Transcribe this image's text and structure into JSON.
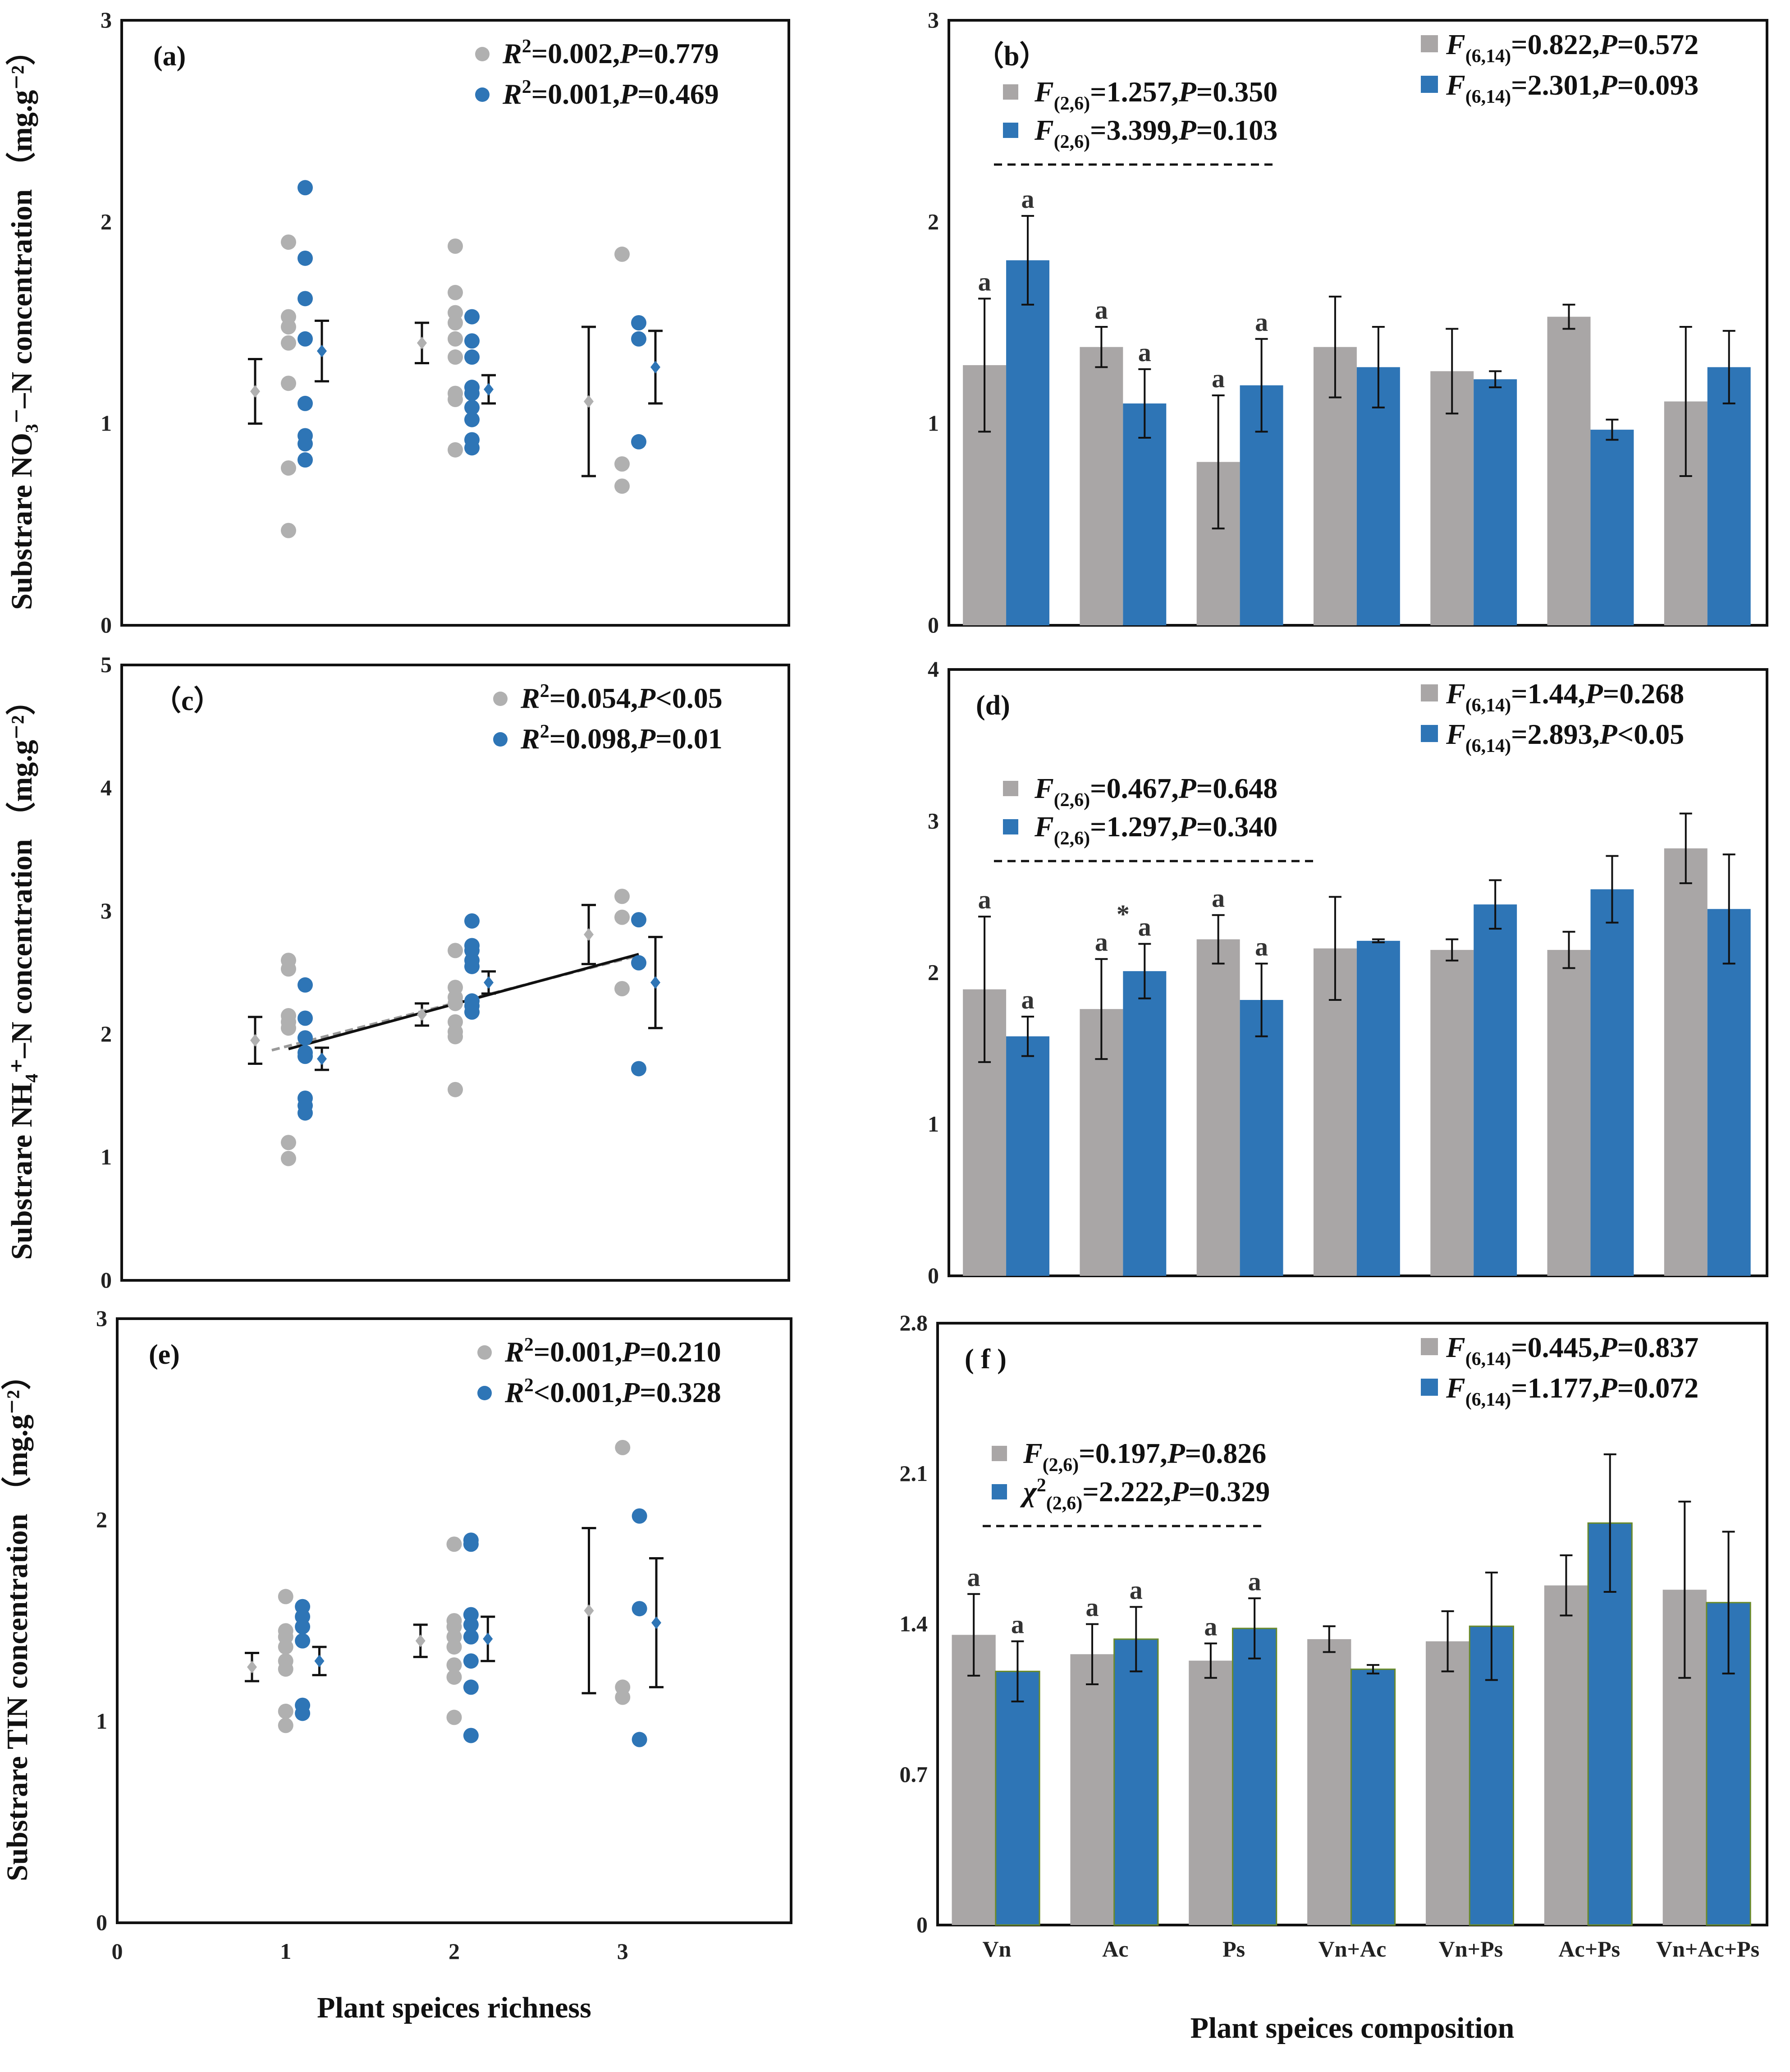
{
  "chart_data": [
    {
      "type": "scatter",
      "panel_label": "(a)",
      "ylabel": "Substrare NO₃⁻–N concentration （mg.g⁻²）",
      "ylim": [
        0,
        3
      ],
      "yticks": [
        "0",
        "1",
        "2",
        "3"
      ],
      "legend": [
        {
          "label": "R²=0.002,P=0.779",
          "color": "#b0b0b0"
        },
        {
          "label": "R²=0.001,P=0.469",
          "color": "#2e75b6"
        }
      ],
      "series": [
        {
          "name": "gray",
          "color": "#b0b0b0",
          "points": [
            [
              1,
              1.9
            ],
            [
              1,
              1.53
            ],
            [
              1,
              1.48
            ],
            [
              1,
              1.4
            ],
            [
              1,
              1.2
            ],
            [
              1,
              0.78
            ],
            [
              1,
              0.47
            ],
            [
              2,
              1.88
            ],
            [
              2,
              1.65
            ],
            [
              2,
              1.55
            ],
            [
              2,
              1.5
            ],
            [
              2,
              1.42
            ],
            [
              2,
              1.33
            ],
            [
              2,
              1.15
            ],
            [
              2,
              1.12
            ],
            [
              2,
              0.87
            ],
            [
              3,
              1.84
            ],
            [
              3,
              0.8
            ],
            [
              3,
              0.69
            ]
          ],
          "mean": [
            [
              0.8,
              1.16,
              0.16
            ],
            [
              1.8,
              1.4,
              0.1
            ],
            [
              2.8,
              1.11,
              0.37
            ]
          ]
        },
        {
          "name": "blue",
          "color": "#2e75b6",
          "points": [
            [
              1.1,
              2.17
            ],
            [
              1.1,
              1.82
            ],
            [
              1.1,
              1.62
            ],
            [
              1.1,
              1.42
            ],
            [
              1.1,
              1.1
            ],
            [
              1.1,
              0.94
            ],
            [
              1.1,
              0.9
            ],
            [
              1.1,
              0.82
            ],
            [
              2.1,
              1.53
            ],
            [
              2.1,
              1.41
            ],
            [
              2.1,
              1.33
            ],
            [
              2.1,
              1.18
            ],
            [
              2.1,
              1.15
            ],
            [
              2.1,
              1.08
            ],
            [
              2.1,
              1.02
            ],
            [
              2.1,
              0.92
            ],
            [
              2.1,
              0.88
            ],
            [
              3.1,
              1.5
            ],
            [
              3.1,
              1.42
            ],
            [
              3.1,
              0.91
            ]
          ],
          "mean": [
            [
              1.2,
              1.36,
              0.15
            ],
            [
              2.2,
              1.17,
              0.07
            ],
            [
              3.2,
              1.28,
              0.18
            ]
          ]
        }
      ]
    },
    {
      "type": "bar",
      "panel_label": "（b）",
      "ylim": [
        0,
        3
      ],
      "yticks": [
        "0",
        "1",
        "2",
        "3"
      ],
      "categories": [
        "Vn",
        "Ac",
        "Ps",
        "Vn+Ac",
        "Vn+Ps",
        "Ac+Ps",
        "Vn+Ac+Ps"
      ],
      "series": [
        {
          "name": "gray",
          "color": "#a9a6a6",
          "values": [
            1.29,
            1.38,
            0.81,
            1.38,
            1.26,
            1.53,
            1.11
          ],
          "errors": [
            0.33,
            0.1,
            0.33,
            0.25,
            0.21,
            0.06,
            0.37
          ]
        },
        {
          "name": "blue",
          "color": "#2e75b6",
          "values": [
            1.81,
            1.1,
            1.19,
            1.28,
            1.22,
            0.97,
            1.28
          ],
          "errors": [
            0.22,
            0.17,
            0.23,
            0.2,
            0.04,
            0.05,
            0.18
          ]
        }
      ],
      "significance": [
        [
          "a",
          "a"
        ],
        [
          "a",
          "a"
        ],
        [
          "a",
          "a"
        ]
      ],
      "star": "",
      "legend_top": [
        {
          "label": "F(6,14)=0.822,P=0.572",
          "color": "#a9a6a6"
        },
        {
          "label": "F(6,14)=2.301,P=0.093",
          "color": "#2e75b6"
        }
      ],
      "legend_inner": [
        {
          "label": "F(2,6)=1.257,P=0.350",
          "color": "#a9a6a6"
        },
        {
          "label": "F(2,6)=3.399,P=0.103",
          "color": "#2e75b6"
        }
      ]
    },
    {
      "type": "scatter",
      "panel_label": "（c）",
      "ylabel": "Substrare NH₄⁺–N concentration （mg.g⁻²）",
      "ylim": [
        0,
        5
      ],
      "yticks": [
        "0",
        "1",
        "2",
        "3",
        "4",
        "5"
      ],
      "legend": [
        {
          "label": "R²=0.054,P<0.05",
          "color": "#b0b0b0"
        },
        {
          "label": "R²=0.098,P=0.01",
          "color": "#2e75b6"
        }
      ],
      "series": [
        {
          "name": "gray",
          "color": "#b0b0b0",
          "points": [
            [
              1,
              2.6
            ],
            [
              1,
              2.53
            ],
            [
              1,
              2.15
            ],
            [
              1,
              2.1
            ],
            [
              1,
              2.05
            ],
            [
              1,
              1.12
            ],
            [
              1,
              0.99
            ],
            [
              2,
              2.68
            ],
            [
              2,
              2.38
            ],
            [
              2,
              2.3
            ],
            [
              2,
              2.25
            ],
            [
              2,
              2.1
            ],
            [
              2,
              2.02
            ],
            [
              2,
              1.98
            ],
            [
              2,
              1.55
            ],
            [
              3,
              3.12
            ],
            [
              3,
              2.95
            ],
            [
              3,
              2.37
            ]
          ],
          "mean": [
            [
              0.8,
              1.95,
              0.19
            ],
            [
              1.8,
              2.16,
              0.09
            ],
            [
              2.8,
              2.81,
              0.24
            ]
          ],
          "trend": [
            [
              0.9,
              1.87
            ],
            [
              3.1,
              2.64
            ]
          ]
        },
        {
          "name": "blue",
          "color": "#2e75b6",
          "points": [
            [
              1.1,
              2.4
            ],
            [
              1.1,
              2.13
            ],
            [
              1.1,
              1.97
            ],
            [
              1.1,
              1.85
            ],
            [
              1.1,
              1.82
            ],
            [
              1.1,
              1.48
            ],
            [
              1.1,
              1.42
            ],
            [
              1.1,
              1.36
            ],
            [
              2.1,
              2.92
            ],
            [
              2.1,
              2.72
            ],
            [
              2.1,
              2.68
            ],
            [
              2.1,
              2.6
            ],
            [
              2.1,
              2.55
            ],
            [
              2.1,
              2.27
            ],
            [
              2.1,
              2.23
            ],
            [
              2.1,
              2.18
            ],
            [
              3.1,
              2.93
            ],
            [
              3.1,
              2.58
            ],
            [
              3.1,
              1.72
            ]
          ],
          "mean": [
            [
              1.2,
              1.8,
              0.09
            ],
            [
              2.2,
              2.42,
              0.09
            ],
            [
              3.2,
              2.42,
              0.37
            ]
          ],
          "trend": [
            [
              1.0,
              1.88
            ],
            [
              3.1,
              2.65
            ]
          ]
        }
      ]
    },
    {
      "type": "bar",
      "panel_label": "(d)",
      "ylim": [
        0,
        4
      ],
      "yticks": [
        "0",
        "1",
        "2",
        "3",
        "4"
      ],
      "categories": [
        "Vn",
        "Ac",
        "Ps",
        "Vn+Ac",
        "Vn+Ps",
        "Ac+Ps",
        "Vn+Ac+Ps"
      ],
      "series": [
        {
          "name": "gray",
          "color": "#a9a6a6",
          "values": [
            1.89,
            1.76,
            2.22,
            2.16,
            2.15,
            2.15,
            2.82
          ],
          "errors": [
            0.48,
            0.33,
            0.16,
            0.34,
            0.07,
            0.12,
            0.23
          ]
        },
        {
          "name": "blue",
          "color": "#2e75b6",
          "values": [
            1.58,
            2.01,
            1.82,
            2.21,
            2.45,
            2.55,
            2.42
          ],
          "errors": [
            0.13,
            0.18,
            0.24,
            0.01,
            0.16,
            0.22,
            0.36
          ]
        }
      ],
      "significance": [
        [
          "a",
          "a"
        ],
        [
          "a",
          "a"
        ],
        [
          "a",
          "a"
        ]
      ],
      "star": "*",
      "legend_top": [
        {
          "label": "F(6,14)=1.44,P=0.268",
          "color": "#a9a6a6"
        },
        {
          "label": "F(6,14)=2.893,P<0.05",
          "color": "#2e75b6"
        }
      ],
      "legend_inner": [
        {
          "label": "F(2,6)=0.467,P=0.648",
          "color": "#a9a6a6"
        },
        {
          "label": "F(2,6)=1.297,P=0.340",
          "color": "#2e75b6"
        }
      ]
    },
    {
      "type": "scatter",
      "panel_label": "(e)",
      "ylabel": "Substrare TIN concentration （mg.g⁻²）",
      "xlabel": "Plant speices richness",
      "ylim": [
        0,
        3
      ],
      "yticks": [
        "0",
        "1",
        "2",
        "3"
      ],
      "xlim": [
        0,
        4
      ],
      "xticks": [
        "0",
        "1",
        "2",
        "3"
      ],
      "legend": [
        {
          "label": "R²=0.001,P=0.210",
          "color": "#b0b0b0"
        },
        {
          "label": "R²<0.001,P=0.328",
          "color": "#2e75b6"
        }
      ],
      "series": [
        {
          "name": "gray",
          "color": "#b0b0b0",
          "points": [
            [
              1,
              1.62
            ],
            [
              1,
              1.45
            ],
            [
              1,
              1.42
            ],
            [
              1,
              1.37
            ],
            [
              1,
              1.3
            ],
            [
              1,
              1.26
            ],
            [
              1,
              1.05
            ],
            [
              1,
              0.98
            ],
            [
              2,
              1.88
            ],
            [
              2,
              1.5
            ],
            [
              2,
              1.47
            ],
            [
              2,
              1.42
            ],
            [
              2,
              1.37
            ],
            [
              2,
              1.28
            ],
            [
              2,
              1.22
            ],
            [
              2,
              1.02
            ],
            [
              3,
              2.36
            ],
            [
              3,
              1.17
            ],
            [
              3,
              1.12
            ]
          ],
          "mean": [
            [
              0.8,
              1.27,
              0.07
            ],
            [
              1.8,
              1.4,
              0.08
            ],
            [
              2.8,
              1.55,
              0.41
            ]
          ]
        },
        {
          "name": "blue",
          "color": "#2e75b6",
          "points": [
            [
              1.1,
              1.57
            ],
            [
              1.1,
              1.52
            ],
            [
              1.1,
              1.47
            ],
            [
              1.1,
              1.4
            ],
            [
              1.1,
              1.08
            ],
            [
              1.1,
              1.04
            ],
            [
              2.1,
              1.9
            ],
            [
              2.1,
              1.88
            ],
            [
              2.1,
              1.53
            ],
            [
              2.1,
              1.48
            ],
            [
              2.1,
              1.42
            ],
            [
              2.1,
              1.3
            ],
            [
              2.1,
              1.17
            ],
            [
              2.1,
              0.93
            ],
            [
              3.1,
              2.02
            ],
            [
              3.1,
              1.56
            ],
            [
              3.1,
              0.91
            ]
          ],
          "mean": [
            [
              1.2,
              1.3,
              0.07
            ],
            [
              2.2,
              1.41,
              0.11
            ],
            [
              3.2,
              1.49,
              0.32
            ]
          ]
        }
      ]
    },
    {
      "type": "bar",
      "panel_label": "( f )",
      "xlabel": "Plant speices composition",
      "ylim": [
        0,
        2.8
      ],
      "yticks": [
        "0",
        "0.7",
        "1.4",
        "2.1",
        "2.8"
      ],
      "categories": [
        "Vn",
        "Ac",
        "Ps",
        "Vn+Ac",
        "Vn+Ps",
        "Ac+Ps",
        "Vn+Ac+Ps"
      ],
      "series": [
        {
          "name": "gray",
          "color": "#a9a6a6",
          "values": [
            1.35,
            1.26,
            1.23,
            1.33,
            1.32,
            1.58,
            1.56
          ],
          "errors": [
            0.19,
            0.14,
            0.08,
            0.06,
            0.14,
            0.14,
            0.41
          ]
        },
        {
          "name": "blue",
          "color": "#2e75b6",
          "values": [
            1.18,
            1.33,
            1.38,
            1.19,
            1.39,
            1.87,
            1.5
          ],
          "errors": [
            0.14,
            0.15,
            0.14,
            0.02,
            0.25,
            0.32,
            0.33
          ]
        }
      ],
      "significance": [
        [
          "a",
          "a"
        ],
        [
          "a",
          "a"
        ],
        [
          "a",
          "a"
        ]
      ],
      "star": "",
      "legend_top": [
        {
          "label": "F(6,14)=0.445,P=0.837",
          "color": "#a9a6a6"
        },
        {
          "label": "F(6,14)=1.177,P=0.072",
          "color": "#2e75b6"
        }
      ],
      "legend_inner": [
        {
          "label": "F(2,6)=0.197,P=0.826",
          "color": "#a9a6a6"
        },
        {
          "label": "χ²(2,6)=2.222,P=0.329",
          "color": "#2e75b6"
        }
      ]
    }
  ]
}
